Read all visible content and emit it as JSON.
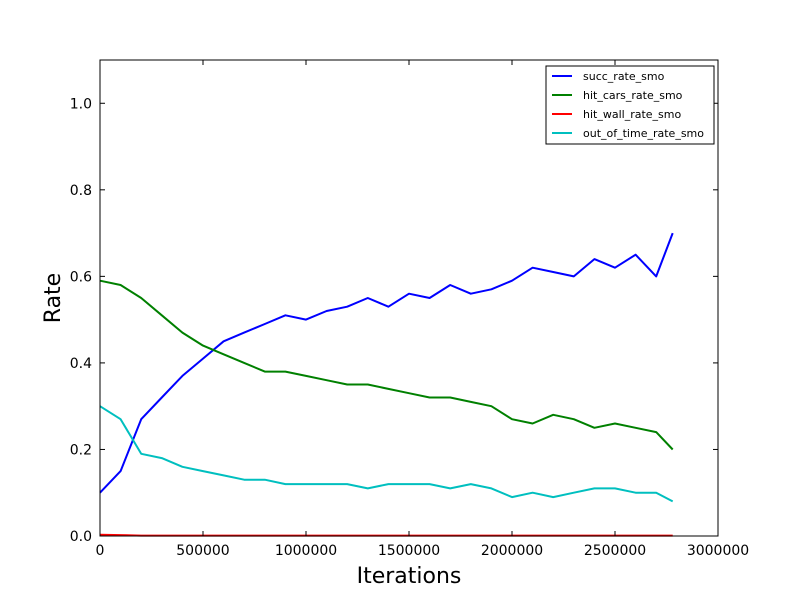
{
  "chart_data": {
    "type": "line",
    "xlabel": "Iterations",
    "ylabel": "Rate",
    "xlim": [
      0,
      3000000
    ],
    "ylim": [
      0.0,
      1.1
    ],
    "xticks": [
      0,
      500000,
      1000000,
      1500000,
      2000000,
      2500000,
      3000000
    ],
    "xtick_labels": [
      "0",
      "500000",
      "1000000",
      "1500000",
      "2000000",
      "2500000",
      "3000000"
    ],
    "yticks": [
      0.0,
      0.2,
      0.4,
      0.6,
      0.8,
      1.0
    ],
    "ytick_labels": [
      "0.0",
      "0.2",
      "0.4",
      "0.6",
      "0.8",
      "1.0"
    ],
    "grid": false,
    "legend_position": "top-right",
    "x": [
      0,
      100000,
      200000,
      300000,
      400000,
      500000,
      600000,
      700000,
      800000,
      900000,
      1000000,
      1100000,
      1200000,
      1300000,
      1400000,
      1500000,
      1600000,
      1700000,
      1800000,
      1900000,
      2000000,
      2100000,
      2200000,
      2300000,
      2400000,
      2500000,
      2600000,
      2700000,
      2780000
    ],
    "series": [
      {
        "name": "succ_rate_smo",
        "color": "#0000ff",
        "values": [
          0.1,
          0.15,
          0.27,
          0.32,
          0.37,
          0.41,
          0.45,
          0.47,
          0.49,
          0.51,
          0.5,
          0.52,
          0.53,
          0.55,
          0.53,
          0.56,
          0.55,
          0.58,
          0.56,
          0.57,
          0.59,
          0.62,
          0.61,
          0.6,
          0.64,
          0.62,
          0.65,
          0.6,
          0.7
        ]
      },
      {
        "name": "hit_cars_rate_smo",
        "color": "#008000",
        "values": [
          0.59,
          0.58,
          0.55,
          0.51,
          0.47,
          0.44,
          0.42,
          0.4,
          0.38,
          0.38,
          0.37,
          0.36,
          0.35,
          0.35,
          0.34,
          0.33,
          0.32,
          0.32,
          0.31,
          0.3,
          0.27,
          0.26,
          0.28,
          0.27,
          0.25,
          0.26,
          0.25,
          0.24,
          0.2
        ]
      },
      {
        "name": "hit_wall_rate_smo",
        "color": "#ff0000",
        "values": [
          0.003,
          0.002,
          0.001,
          0.001,
          0.001,
          0.001,
          0.001,
          0.001,
          0.001,
          0.001,
          0.001,
          0.001,
          0.001,
          0.001,
          0.001,
          0.001,
          0.001,
          0.001,
          0.001,
          0.001,
          0.001,
          0.001,
          0.001,
          0.001,
          0.001,
          0.001,
          0.001,
          0.001,
          0.001
        ]
      },
      {
        "name": "out_of_time_rate_smo",
        "color": "#00bfbf",
        "values": [
          0.3,
          0.27,
          0.19,
          0.18,
          0.16,
          0.15,
          0.14,
          0.13,
          0.13,
          0.12,
          0.12,
          0.12,
          0.12,
          0.11,
          0.12,
          0.12,
          0.12,
          0.11,
          0.12,
          0.11,
          0.09,
          0.1,
          0.09,
          0.1,
          0.11,
          0.11,
          0.1,
          0.1,
          0.08
        ]
      }
    ]
  }
}
